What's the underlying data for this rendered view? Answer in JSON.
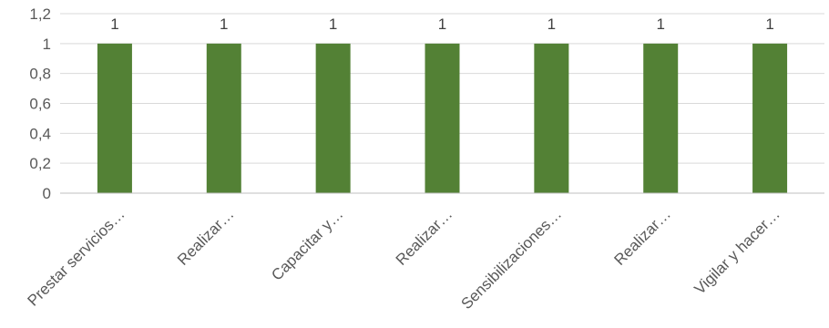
{
  "chart_data": {
    "type": "bar",
    "categories": [
      "Prestar servicios…",
      "Realizar…",
      "Capacitar y…",
      "Realizar…",
      "Sensibilizaciones…",
      "Realizar…",
      "Vigilar y hacer…"
    ],
    "series": [
      {
        "values": [
          1,
          1,
          1,
          1,
          1,
          1,
          1
        ],
        "color": "#538135"
      }
    ],
    "data_labels": [
      "1",
      "1",
      "1",
      "1",
      "1",
      "1",
      "1"
    ],
    "y_ticks": [
      "0",
      "0,2",
      "0,4",
      "0,6",
      "0,8",
      "1",
      "1,2"
    ],
    "ylim": [
      0,
      1.2
    ],
    "grid": true,
    "legend": "none",
    "title": "",
    "xlabel": "",
    "ylabel": ""
  }
}
